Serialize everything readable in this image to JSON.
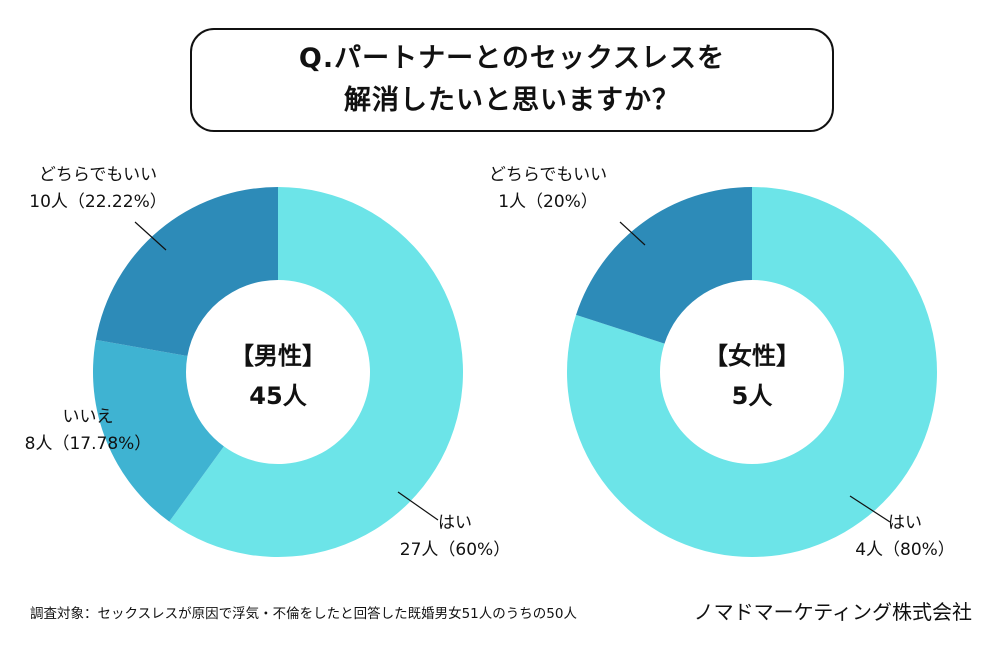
{
  "title": {
    "line1": "Q.パートナーとのセックスレスを",
    "line2": "解消したいと思いますか？"
  },
  "chart_data": [
    {
      "type": "pie",
      "center_label": "【男性】",
      "center_value": "45人",
      "slices": [
        {
          "name": "はい",
          "count_label": "27人（60%）",
          "value": 60,
          "color": "#6ce4e8"
        },
        {
          "name": "いいえ",
          "count_label": "8人（17.78%）",
          "value": 17.78,
          "color": "#3fb3d2"
        },
        {
          "name": "どちらでもいい",
          "count_label": "10人（22.22%）",
          "value": 22.22,
          "color": "#2d8bb8"
        }
      ]
    },
    {
      "type": "pie",
      "center_label": "【女性】",
      "center_value": "5人",
      "slices": [
        {
          "name": "はい",
          "count_label": "4人（80%）",
          "value": 80,
          "color": "#6ce4e8"
        },
        {
          "name": "どちらでもいい",
          "count_label": "1人（20%）",
          "value": 20,
          "color": "#2d8bb8"
        }
      ]
    }
  ],
  "footnote": "調査対象：セックスレスが原因で浮気・不倫をしたと回答した既婚男女51人のうちの50人",
  "company": "ノマドマーケティング株式会社"
}
